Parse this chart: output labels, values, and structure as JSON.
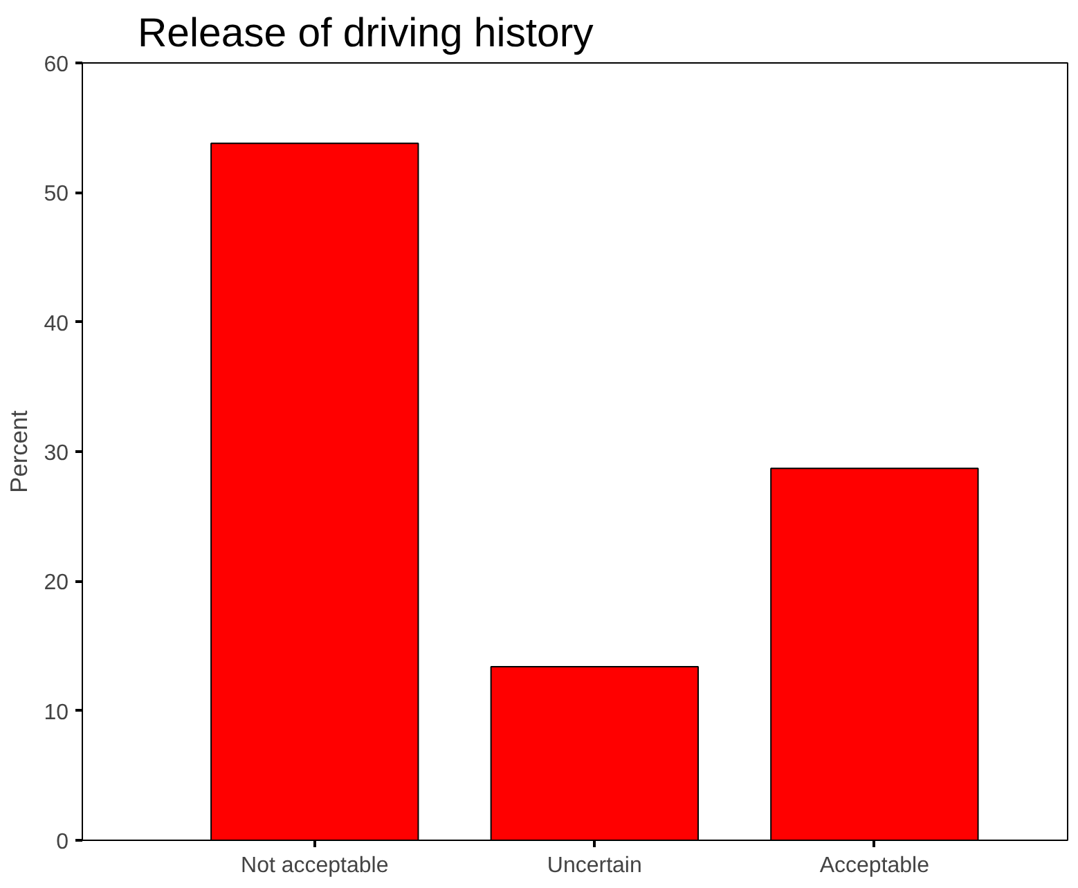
{
  "chart_data": {
    "type": "bar",
    "title": "Release of driving history",
    "ylabel": "Percent",
    "categories": [
      "Not acceptable",
      "Uncertain",
      "Acceptable"
    ],
    "values": [
      53.8,
      13.4,
      28.7
    ],
    "color": "#ff0000",
    "ylim": [
      0,
      60
    ],
    "yticks": [
      0,
      10,
      20,
      30,
      40,
      50,
      60
    ],
    "grid": false
  }
}
